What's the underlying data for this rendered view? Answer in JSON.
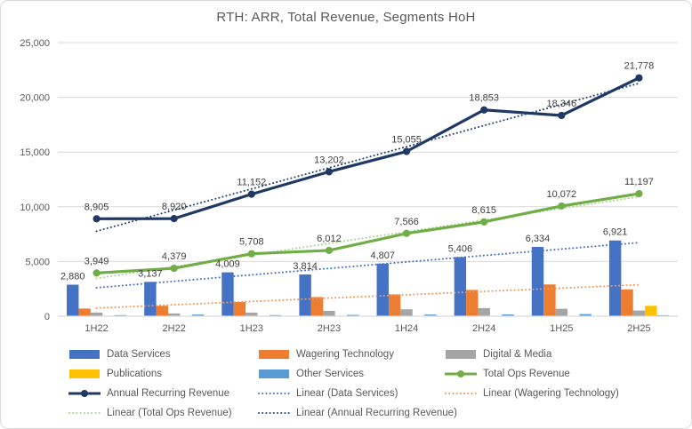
{
  "chart_data": {
    "type": "combo-bar-line",
    "title": "RTH: ARR, Total Revenue, Segments HoH",
    "categories": [
      "1H22",
      "2H22",
      "1H23",
      "2H23",
      "1H24",
      "2H24",
      "1H25",
      "2H25"
    ],
    "y_axis": {
      "min": 0,
      "max": 25000,
      "step": 5000,
      "ticks": [
        0,
        5000,
        10000,
        15000,
        20000,
        25000
      ]
    },
    "grid": "on",
    "legend_position": "bottom",
    "bar_series": [
      {
        "name": "Data Services",
        "color": "#4472C4",
        "show_labels": true,
        "values": [
          2880,
          3137,
          4009,
          3814,
          4807,
          5406,
          6334,
          6921
        ]
      },
      {
        "name": "Wagering Technology",
        "color": "#ED7D31",
        "show_labels": false,
        "values": [
          700,
          950,
          1300,
          1750,
          2000,
          2400,
          2900,
          2450
        ]
      },
      {
        "name": "Digital & Media",
        "color": "#A5A5A5",
        "show_labels": false,
        "values": [
          330,
          250,
          330,
          490,
          630,
          740,
          680,
          520
        ]
      },
      {
        "name": "Publications",
        "color": "#FFC000",
        "show_labels": false,
        "values": [
          0,
          0,
          0,
          0,
          0,
          0,
          0,
          950
        ]
      },
      {
        "name": "Other Services",
        "color": "#5B9BD5",
        "show_labels": false,
        "values": [
          100,
          150,
          100,
          120,
          150,
          160,
          190,
          90
        ]
      }
    ],
    "line_series": [
      {
        "name": "Total Ops Revenue",
        "color": "#70AD47",
        "show_labels": true,
        "values": [
          3949,
          4379,
          5708,
          6012,
          7566,
          8615,
          10072,
          11197
        ]
      },
      {
        "name": "Annual Recurring Revenue",
        "color": "#203864",
        "show_labels": true,
        "values": [
          8905,
          8920,
          11152,
          13202,
          15055,
          18853,
          18346,
          21778
        ]
      }
    ],
    "trendlines": [
      {
        "name": "Linear (Data Services)",
        "color": "#4472C4",
        "source": "Data Services"
      },
      {
        "name": "Linear (Wagering Technology)",
        "color": "#F1975A",
        "source": "Wagering Technology"
      },
      {
        "name": "Linear (Total Ops Revenue)",
        "color": "#A9D18E",
        "source": "Total Ops Revenue"
      },
      {
        "name": "Linear (Annual Recurring Revenue)",
        "color": "#264478",
        "source": "Annual Recurring Revenue"
      }
    ],
    "legend": [
      {
        "label": "Data Services",
        "marker": "bar",
        "color": "#4472C4",
        "row": 0,
        "col": 0
      },
      {
        "label": "Wagering Technology",
        "marker": "bar",
        "color": "#ED7D31",
        "row": 0,
        "col": 1
      },
      {
        "label": "Digital & Media",
        "marker": "bar",
        "color": "#A5A5A5",
        "row": 0,
        "col": 2
      },
      {
        "label": "Publications",
        "marker": "bar",
        "color": "#FFC000",
        "row": 1,
        "col": 0
      },
      {
        "label": "Other Services",
        "marker": "bar",
        "color": "#5B9BD5",
        "row": 1,
        "col": 1
      },
      {
        "label": "Total Ops Revenue",
        "marker": "line",
        "color": "#70AD47",
        "row": 1,
        "col": 2
      },
      {
        "label": "Annual Recurring Revenue",
        "marker": "line",
        "color": "#203864",
        "row": 2,
        "col": 0
      },
      {
        "label": "Linear (Data Services)",
        "marker": "dotted",
        "color": "#4472C4",
        "row": 2,
        "col": 1
      },
      {
        "label": "Linear (Wagering Technology)",
        "marker": "dotted",
        "color": "#F1975A",
        "row": 2,
        "col": 2
      },
      {
        "label": "Linear (Total Ops Revenue)",
        "marker": "dotted",
        "color": "#A9D18E",
        "row": 3,
        "col": 0
      },
      {
        "label": "Linear (Annual Recurring Revenue)",
        "marker": "dotted",
        "color": "#264478",
        "row": 3,
        "col": 1
      }
    ]
  }
}
